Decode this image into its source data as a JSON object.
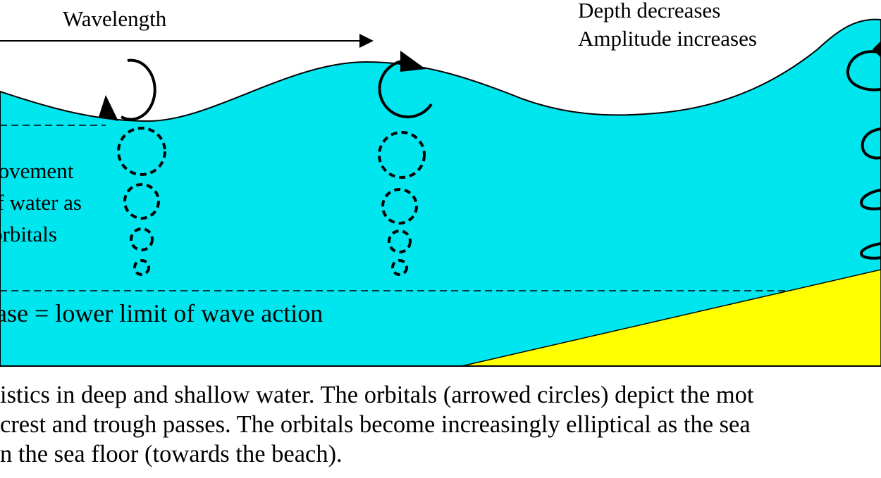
{
  "labels": {
    "wavelength": "Wavelength",
    "shallow_line1": "Depth decreases",
    "shallow_line2": "Amplitude increases",
    "orbital_line1": "Movement",
    "orbital_line2": "of water as",
    "orbital_line3": "orbitals",
    "wave_base": "Wave-base = lower limit of wave action"
  },
  "caption": {
    "line1": "istics in deep and shallow water. The orbitals (arrowed circles) depict the mot",
    "line2": "crest and trough passes. The orbitals become increasingly elliptical as the sea",
    "line3": "n the sea floor (towards the beach)."
  },
  "colors": {
    "water": "#00e6ef",
    "sea_floor": "#ffff00",
    "outline": "#000000"
  }
}
